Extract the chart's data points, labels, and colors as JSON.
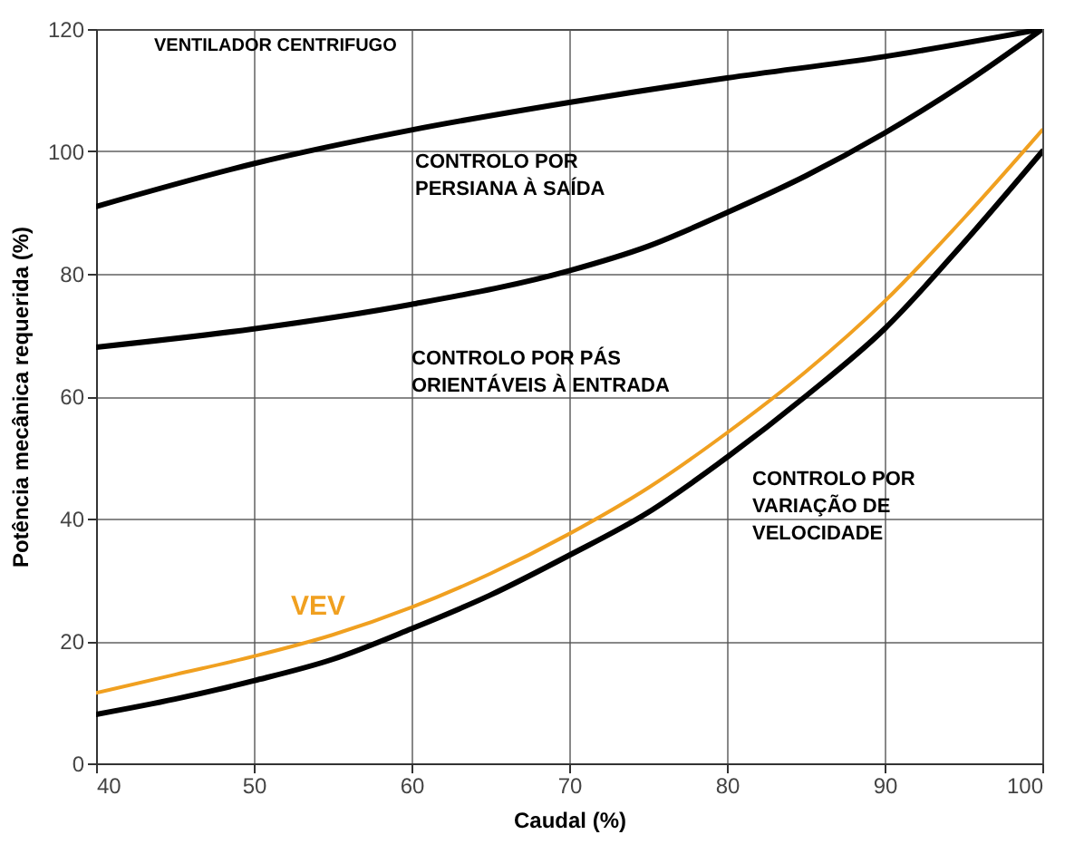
{
  "chart_data": {
    "type": "line",
    "title": "VENTILADOR CENTRIFUGO",
    "xlabel": "Caudal (%)",
    "ylabel": "Potência  mecânica requerida (%)",
    "xlim": [
      40,
      100
    ],
    "xticks": [
      40,
      50,
      60,
      70,
      80,
      90,
      100
    ],
    "ylim": [
      0,
      120
    ],
    "yticks": [
      0,
      20,
      40,
      60,
      80,
      100,
      120
    ],
    "grid": true,
    "marker": "none",
    "legend": false,
    "series": [
      {
        "name": "CONTROLO POR\nPERSIANA À SAÍDA",
        "color": "#000000",
        "x": [
          40,
          50,
          60,
          70,
          80,
          90,
          100
        ],
        "values": [
          91,
          98,
          103.5,
          108,
          112,
          115.5,
          120
        ]
      },
      {
        "name": "CONTROLO POR PÁS\nORIENTÁVEIS À ENTRADA",
        "color": "#000000",
        "x": [
          40,
          50,
          60,
          70,
          75,
          80,
          85,
          90,
          95,
          100
        ],
        "values": [
          68,
          71,
          75,
          80.5,
          84.5,
          90,
          96,
          103,
          111,
          120
        ]
      },
      {
        "name": "CONTROLO POR\nVARIAÇÃO DE\nVELOCIDADE",
        "color": "#000000",
        "x": [
          40,
          45,
          50,
          55,
          60,
          65,
          70,
          75,
          80,
          85,
          90,
          95,
          100
        ],
        "values": [
          8,
          10.5,
          13.5,
          17,
          22,
          27.5,
          34,
          41,
          50,
          60,
          71,
          85,
          100
        ]
      },
      {
        "name": "VEV",
        "color": "#f0a020",
        "x": [
          40,
          45,
          50,
          55,
          60,
          65,
          70,
          75,
          80,
          85,
          90,
          95,
          100
        ],
        "values": [
          11.5,
          14.5,
          17.5,
          21,
          25.5,
          31,
          37.5,
          45,
          54,
          64,
          75.5,
          89,
          103.5
        ]
      }
    ]
  }
}
